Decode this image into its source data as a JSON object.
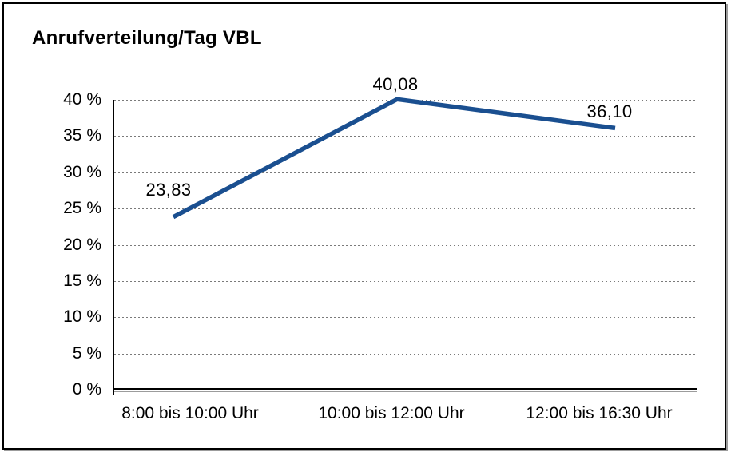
{
  "chart_data": {
    "type": "line",
    "title": "Anrufverteilung/Tag VBL",
    "categories": [
      "8:00 bis 10:00 Uhr",
      "10:00 bis 12:00 Uhr",
      "12:00 bis 16:30 Uhr"
    ],
    "values": [
      23.83,
      40.08,
      36.1
    ],
    "point_labels": [
      "23,83",
      "40,08",
      "36,10"
    ],
    "y_tick_labels": [
      "0 %",
      "5 %",
      "10 %",
      "15 %",
      "20 %",
      "25 %",
      "30 %",
      "35 %",
      "40 %"
    ],
    "y_tick_values": [
      0,
      5,
      10,
      15,
      20,
      25,
      30,
      35,
      40
    ],
    "ylim": [
      0,
      40
    ],
    "xlabel": "",
    "ylabel": "",
    "grid": "horizontal-dotted",
    "legend": "none",
    "colors": {
      "line": "#1a4f90",
      "text": "#000000",
      "gridline": "#7a7a7a",
      "frame_border": "#000000",
      "frame_shadow": "#9c9c9c",
      "background": "#ffffff"
    }
  }
}
